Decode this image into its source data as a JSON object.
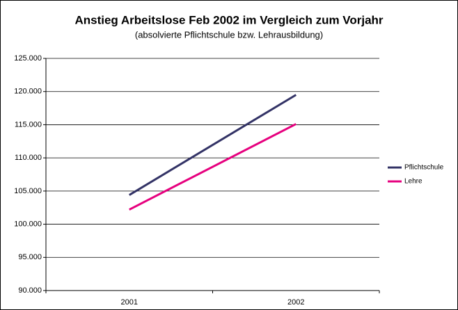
{
  "chart_data": {
    "type": "line",
    "title": "Anstieg Arbeitslose Feb 2002 im Vergleich zum Vorjahr",
    "subtitle": "(absolvierte Pflichtschule bzw. Lehrausbildung)",
    "categories": [
      "2001",
      "2002"
    ],
    "series": [
      {
        "name": "Pflichtschule",
        "color": "#333366",
        "values": [
          104400,
          119500
        ]
      },
      {
        "name": "Lehre",
        "color": "#e6007e",
        "values": [
          102200,
          115100
        ]
      }
    ],
    "ylim": [
      90000,
      125000
    ],
    "yticks": [
      {
        "value": 90000,
        "label": "90.000"
      },
      {
        "value": 95000,
        "label": "95.000"
      },
      {
        "value": 100000,
        "label": "100.000"
      },
      {
        "value": 105000,
        "label": "105.000"
      },
      {
        "value": 110000,
        "label": "110.000"
      },
      {
        "value": 115000,
        "label": "115.000"
      },
      {
        "value": 120000,
        "label": "120.000"
      },
      {
        "value": 125000,
        "label": "125.000"
      }
    ],
    "grid": true,
    "legend": "right"
  }
}
